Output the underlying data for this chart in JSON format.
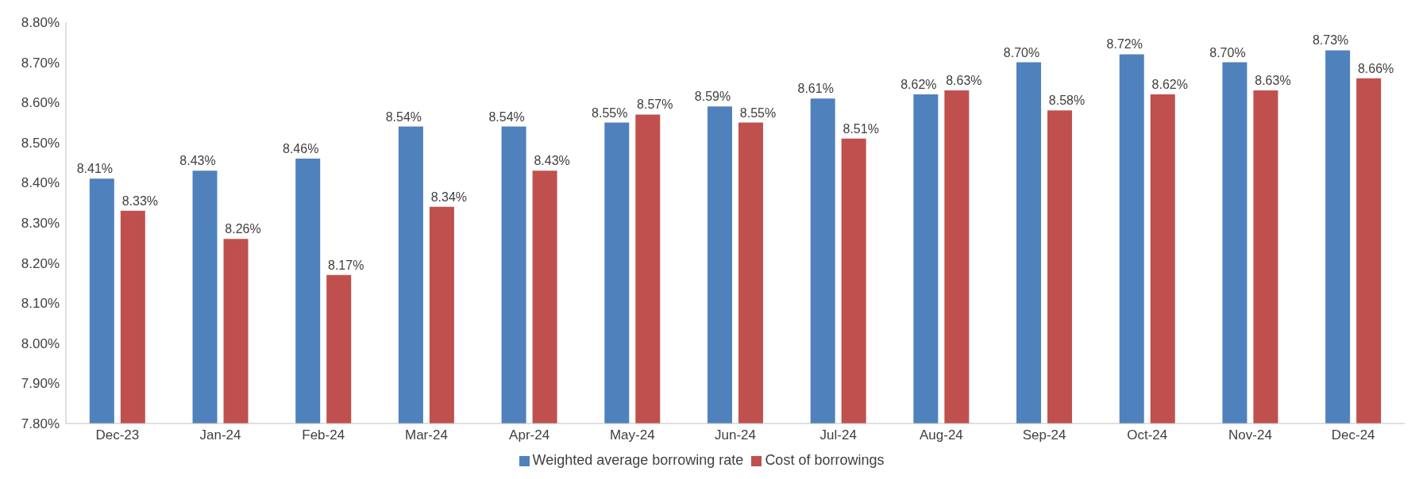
{
  "chart_data": {
    "type": "bar",
    "categories": [
      "Dec-23",
      "Jan-24",
      "Feb-24",
      "Mar-24",
      "Apr-24",
      "May-24",
      "Jun-24",
      "Jul-24",
      "Aug-24",
      "Sep-24",
      "Oct-24",
      "Nov-24",
      "Dec-24"
    ],
    "series": [
      {
        "name": "Weighted average borrowing rate",
        "color": "#4f81bd",
        "values": [
          8.41,
          8.43,
          8.46,
          8.54,
          8.54,
          8.55,
          8.59,
          8.61,
          8.62,
          8.7,
          8.72,
          8.7,
          8.73
        ],
        "value_labels": [
          "8.41%",
          "8.43%",
          "8.46%",
          "8.54%",
          "8.54%",
          "8.55%",
          "8.59%",
          "8.61%",
          "8.62%",
          "8.70%",
          "8.72%",
          "8.70%",
          "8.73%"
        ]
      },
      {
        "name": "Cost of  borrowings",
        "color": "#c0504d",
        "values": [
          8.33,
          8.26,
          8.17,
          8.34,
          8.43,
          8.57,
          8.55,
          8.51,
          8.63,
          8.58,
          8.62,
          8.63,
          8.66
        ],
        "value_labels": [
          "8.33%",
          "8.26%",
          "8.17%",
          "8.34%",
          "8.43%",
          "8.57%",
          "8.55%",
          "8.51%",
          "8.63%",
          "8.58%",
          "8.62%",
          "8.63%",
          "8.66%"
        ]
      }
    ],
    "ylim": [
      7.8,
      8.8
    ],
    "yticks": [
      {
        "value": 7.8,
        "label": "7.80%"
      },
      {
        "value": 7.9,
        "label": "7.90%"
      },
      {
        "value": 8.0,
        "label": "8.00%"
      },
      {
        "value": 8.1,
        "label": "8.10%"
      },
      {
        "value": 8.2,
        "label": "8.20%"
      },
      {
        "value": 8.3,
        "label": "8.30%"
      },
      {
        "value": 8.4,
        "label": "8.40%"
      },
      {
        "value": 8.5,
        "label": "8.50%"
      },
      {
        "value": 8.6,
        "label": "8.60%"
      },
      {
        "value": 8.7,
        "label": "8.70%"
      },
      {
        "value": 8.8,
        "label": "8.80%"
      }
    ],
    "legend": "bottom"
  }
}
